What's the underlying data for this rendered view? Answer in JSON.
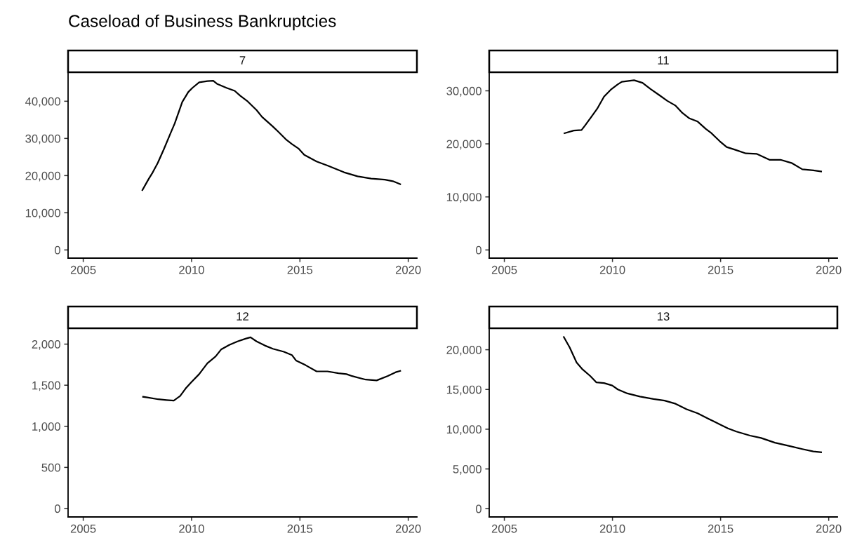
{
  "chart_data": [
    {
      "type": "line",
      "title": "Caseload of Business Bankruptcies",
      "subtitle": "7",
      "grid": false,
      "marker": "none",
      "line_style": "solid",
      "xlim": [
        2004.3,
        2020.4
      ],
      "xticks": [
        2005,
        2010,
        2015,
        2020
      ],
      "ylim": [
        -2200,
        47800
      ],
      "yticks": [
        0,
        {
          "value": 10000,
          "label": "10,000"
        },
        {
          "value": 20000,
          "label": "20,000"
        },
        {
          "value": 30000,
          "label": "30,000"
        },
        {
          "value": 40000,
          "label": "40,000"
        }
      ],
      "series": [
        {
          "color": "#000000",
          "x": [
            2007.73,
            2008.02,
            2008.21,
            2008.44,
            2008.72,
            2009.03,
            2009.22,
            2009.57,
            2009.85,
            2010.04,
            2010.35,
            2010.73,
            2011.0,
            2011.17,
            2011.61,
            2011.99,
            2012.24,
            2012.56,
            2013.0,
            2013.25,
            2013.75,
            2014.0,
            2014.38,
            2014.63,
            2014.95,
            2015.2,
            2015.77,
            2016.27,
            2017.03,
            2017.66,
            2018.29,
            2018.92,
            2019.29,
            2019.63
          ],
          "values": [
            16100,
            19100,
            20900,
            23400,
            27100,
            31400,
            34000,
            39800,
            42500,
            43600,
            45100,
            45400,
            45500,
            44700,
            43600,
            42800,
            41500,
            40100,
            37600,
            35800,
            33200,
            31800,
            29600,
            28500,
            27200,
            25600,
            23800,
            22700,
            20900,
            19800,
            19200,
            18900,
            18500,
            17700
          ]
        }
      ]
    },
    {
      "type": "line",
      "subtitle": "11",
      "grid": false,
      "marker": "none",
      "line_style": "solid",
      "xlim": [
        2004.3,
        2020.4
      ],
      "xticks": [
        2005,
        2010,
        2015,
        2020
      ],
      "ylim": [
        -1540,
        33500
      ],
      "yticks": [
        0,
        {
          "value": 10000,
          "label": "10,000"
        },
        {
          "value": 20000,
          "label": "20,000"
        },
        {
          "value": 30000,
          "label": "30,000"
        }
      ],
      "series": [
        {
          "color": "#000000",
          "x": [
            2007.78,
            2008.21,
            2008.57,
            2008.72,
            2008.97,
            2009.29,
            2009.61,
            2009.92,
            2010.24,
            2010.43,
            2011.0,
            2011.39,
            2011.77,
            2012.16,
            2012.54,
            2012.92,
            2013.24,
            2013.56,
            2013.94,
            2014.32,
            2014.58,
            2014.96,
            2015.28,
            2015.66,
            2016.17,
            2016.68,
            2017.26,
            2017.77,
            2018.28,
            2018.78,
            2019.29,
            2019.65
          ],
          "values": [
            22000,
            22500,
            22600,
            23400,
            24800,
            26600,
            28900,
            30200,
            31200,
            31700,
            32000,
            31500,
            30300,
            29200,
            28100,
            27200,
            25800,
            24800,
            24200,
            22800,
            22000,
            20500,
            19400,
            18900,
            18200,
            18100,
            17000,
            17000,
            16400,
            15200,
            15000,
            14800
          ]
        }
      ]
    },
    {
      "type": "line",
      "subtitle": "12",
      "grid": false,
      "marker": "none",
      "line_style": "solid",
      "xlim": [
        2004.3,
        2020.4
      ],
      "xticks": [
        2005,
        2010,
        2015,
        2020
      ],
      "ylim": [
        -103,
        2193
      ],
      "yticks": [
        0,
        500,
        {
          "value": 1000,
          "label": "1,000"
        },
        {
          "value": 1500,
          "label": "1,500"
        },
        {
          "value": 2000,
          "label": "2,000"
        }
      ],
      "series": [
        {
          "color": "#000000",
          "x": [
            2007.76,
            2007.96,
            2008.46,
            2008.84,
            2009.18,
            2009.47,
            2009.72,
            2009.97,
            2010.35,
            2010.73,
            2011.11,
            2011.36,
            2011.74,
            2012.12,
            2012.49,
            2012.72,
            2013.0,
            2013.38,
            2013.75,
            2014.26,
            2014.63,
            2014.82,
            2015.26,
            2015.77,
            2016.27,
            2016.78,
            2017.15,
            2017.41,
            2018.04,
            2018.54,
            2019.04,
            2019.42,
            2019.63
          ],
          "values": [
            1359,
            1352,
            1329,
            1319,
            1312,
            1369,
            1458,
            1532,
            1635,
            1767,
            1850,
            1934,
            1990,
            2033,
            2066,
            2083,
            2033,
            1983,
            1943,
            1907,
            1867,
            1801,
            1744,
            1668,
            1668,
            1645,
            1635,
            1611,
            1568,
            1558,
            1611,
            1658,
            1674
          ]
        }
      ]
    },
    {
      "type": "line",
      "subtitle": "13",
      "grid": false,
      "marker": "none",
      "line_style": "solid",
      "xlim": [
        2004.3,
        2020.4
      ],
      "xticks": [
        2005,
        2010,
        2015,
        2020
      ],
      "ylim": [
        -1040,
        22700
      ],
      "yticks": [
        0,
        {
          "value": 5000,
          "label": "5,000"
        },
        {
          "value": 10000,
          "label": "10,000"
        },
        {
          "value": 15000,
          "label": "15,000"
        },
        {
          "value": 20000,
          "label": "20,000"
        }
      ],
      "series": [
        {
          "color": "#000000",
          "x": [
            2007.75,
            2008.02,
            2008.34,
            2008.59,
            2008.97,
            2009.25,
            2009.61,
            2009.99,
            2010.25,
            2010.69,
            2011.27,
            2011.9,
            2012.41,
            2012.92,
            2013.43,
            2013.94,
            2014.45,
            2014.96,
            2015.34,
            2015.73,
            2016.36,
            2016.87,
            2017.51,
            2018.15,
            2018.78,
            2019.29,
            2019.65
          ],
          "values": [
            21600,
            20300,
            18400,
            17600,
            16700,
            15900,
            15800,
            15500,
            15000,
            14500,
            14100,
            13800,
            13600,
            13200,
            12500,
            12000,
            11300,
            10600,
            10100,
            9700,
            9200,
            8900,
            8300,
            7900,
            7500,
            7200,
            7100
          ]
        }
      ]
    }
  ]
}
